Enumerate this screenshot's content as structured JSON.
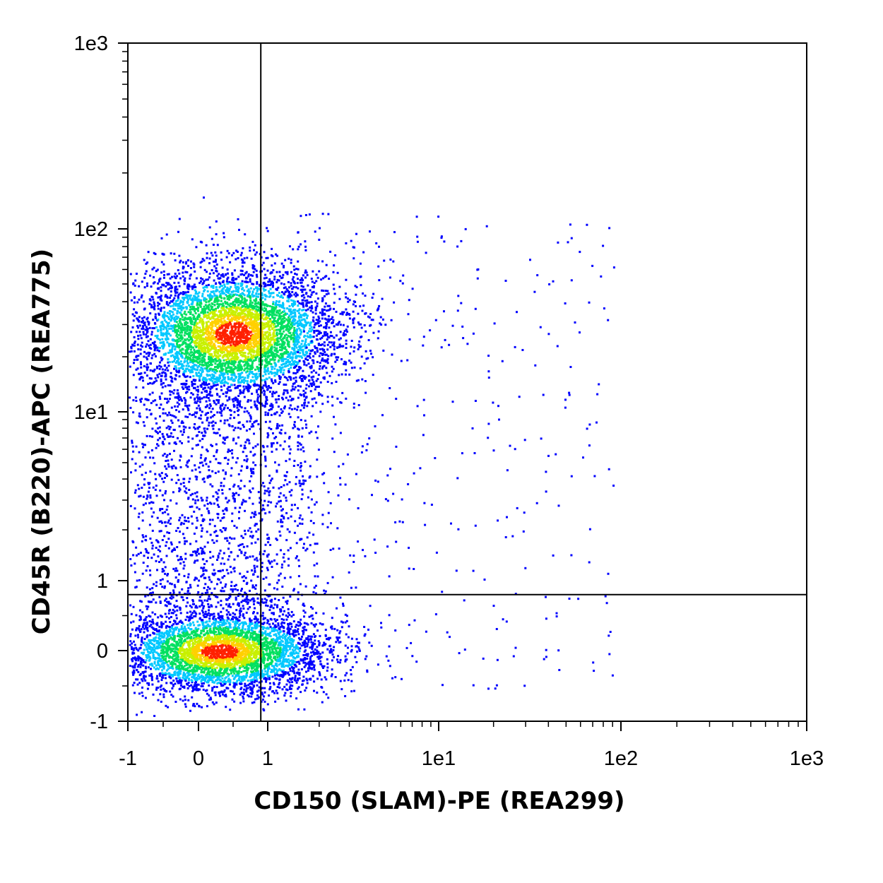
{
  "chart_data": {
    "type": "scatter",
    "subtype": "flow-cytometry density dot plot",
    "xlabel": "CD150 (SLAM)-PE (REA299)",
    "ylabel": "CD45R (B220)-APC (REA775)",
    "x_scale": "biexponential (linear near 0, log above 1)",
    "y_scale": "biexponential (linear near 0, log above 1)",
    "xlim": [
      -1,
      1000
    ],
    "ylim": [
      -1,
      1000
    ],
    "x_ticks": [
      {
        "value": -1,
        "label": "-1"
      },
      {
        "value": 0,
        "label": "0"
      },
      {
        "value": 1,
        "label": "1"
      },
      {
        "value": 10,
        "label": "1e1"
      },
      {
        "value": 100,
        "label": "1e2"
      },
      {
        "value": 1000,
        "label": "1e3"
      }
    ],
    "y_ticks": [
      {
        "value": -1,
        "label": "-1"
      },
      {
        "value": 0,
        "label": "0"
      },
      {
        "value": 1,
        "label": "1"
      },
      {
        "value": 10,
        "label": "1e1"
      },
      {
        "value": 100,
        "label": "1e2"
      },
      {
        "value": 1000,
        "label": "1e3"
      }
    ],
    "quadrant_gate": {
      "x": 0.9,
      "y": 0.8
    },
    "populations": [
      {
        "center_x": 0.5,
        "center_y": 27,
        "density": "high"
      },
      {
        "center_x": 0.3,
        "center_y": 0.0,
        "density": "high"
      }
    ],
    "density_colors": [
      "#0000ff",
      "#00c8ff",
      "#00e060",
      "#c8f000",
      "#ffd000",
      "#ff2000"
    ],
    "grid": false,
    "legend": "none"
  }
}
